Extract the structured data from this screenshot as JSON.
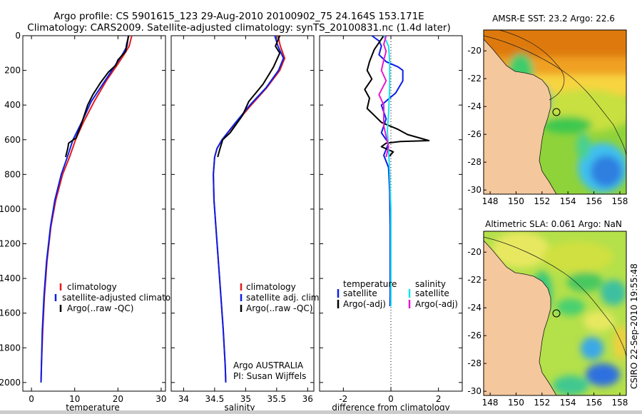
{
  "header": {
    "line1": "Argo profile: CS 5901615_123 29-Aug-2010 20100902_75 24.164S 153.171E",
    "line2": "Climatology: CARS2009. Satellite-adjusted climatology: synTS_20100831.nc (1.4d later)"
  },
  "credit": "CSIRO 22-Sep-2010 19:55:48",
  "colors": {
    "climatology": "#e41a1c",
    "satellite": "#0a1ee6",
    "argo": "#000000",
    "sal_satellite": "#19e1eb",
    "sal_argo": "#e619d2",
    "land": "#f4c79d",
    "bottom": "#cccccc"
  },
  "chart_data": [
    {
      "type": "line",
      "xlabel": "temperature",
      "ylabel": "",
      "xlim": [
        -2,
        31
      ],
      "ylim": [
        2050,
        0
      ],
      "xticks": [
        0,
        10,
        20,
        30
      ],
      "yticks": [
        0,
        200,
        400,
        600,
        800,
        1000,
        1200,
        1400,
        1600,
        1800,
        2000
      ],
      "legend": [
        "climatology",
        "satellite-adjusted climatology",
        "Argo(..raw -QC)"
      ],
      "series": [
        {
          "name": "climatology",
          "color": "#e41a1c",
          "points": [
            [
              23.2,
              0
            ],
            [
              22.6,
              60
            ],
            [
              21.4,
              110
            ],
            [
              19.8,
              170
            ],
            [
              17.3,
              260
            ],
            [
              14.5,
              380
            ],
            [
              12.0,
              500
            ],
            [
              10.2,
              600
            ],
            [
              8.8,
              700
            ],
            [
              7.2,
              800
            ],
            [
              5.6,
              950
            ],
            [
              4.5,
              1100
            ],
            [
              3.6,
              1300
            ],
            [
              3.0,
              1500
            ],
            [
              2.6,
              1700
            ],
            [
              2.3,
              1900
            ],
            [
              2.2,
              2000
            ]
          ]
        },
        {
          "name": "satellite-adjusted climatology",
          "color": "#0a1ee6",
          "points": [
            [
              22.4,
              0
            ],
            [
              22.1,
              60
            ],
            [
              21.0,
              110
            ],
            [
              19.4,
              170
            ],
            [
              17.0,
              260
            ],
            [
              13.8,
              380
            ],
            [
              11.6,
              500
            ],
            [
              9.6,
              600
            ],
            [
              8.3,
              700
            ],
            [
              6.9,
              800
            ],
            [
              5.4,
              950
            ],
            [
              4.4,
              1100
            ],
            [
              3.5,
              1300
            ],
            [
              2.9,
              1500
            ],
            [
              2.5,
              1700
            ],
            [
              2.3,
              1900
            ],
            [
              2.2,
              2000
            ]
          ]
        },
        {
          "name": "Argo(..raw -QC)",
          "color": "#000000",
          "points": [
            [
              22.5,
              0
            ],
            [
              22.0,
              50
            ],
            [
              21.8,
              90
            ],
            [
              20.0,
              140
            ],
            [
              19.5,
              170
            ],
            [
              17.8,
              210
            ],
            [
              16.0,
              270
            ],
            [
              14.2,
              340
            ],
            [
              13.0,
              400
            ],
            [
              12.2,
              460
            ],
            [
              11.4,
              520
            ],
            [
              10.3,
              590
            ],
            [
              8.6,
              620
            ],
            [
              8.4,
              650
            ],
            [
              7.9,
              700
            ]
          ]
        }
      ]
    },
    {
      "type": "line",
      "xlabel": "salinity",
      "ylabel": "",
      "xlim": [
        33.8,
        36.1
      ],
      "ylim": [
        2050,
        0
      ],
      "xticks": [
        34,
        34.5,
        35,
        35.5,
        36
      ],
      "yticks": [
        0,
        200,
        400,
        600,
        800,
        1000,
        1200,
        1400,
        1600,
        1800,
        2000
      ],
      "legend": [
        "climatology",
        "satellite adj. clim.",
        "Argo(..raw -QC)"
      ],
      "annotation": [
        "Argo AUSTRALIA",
        "PI: Susan Wijffels"
      ],
      "series": [
        {
          "name": "climatology",
          "color": "#e41a1c",
          "points": [
            [
              35.52,
              0
            ],
            [
              35.56,
              60
            ],
            [
              35.63,
              130
            ],
            [
              35.55,
              200
            ],
            [
              35.34,
              300
            ],
            [
              35.09,
              400
            ],
            [
              34.85,
              500
            ],
            [
              34.62,
              600
            ],
            [
              34.54,
              650
            ],
            [
              34.5,
              700
            ],
            [
              34.48,
              800
            ],
            [
              34.49,
              950
            ],
            [
              34.52,
              1100
            ],
            [
              34.56,
              1300
            ],
            [
              34.6,
              1500
            ],
            [
              34.64,
              1700
            ],
            [
              34.67,
              1900
            ],
            [
              34.68,
              2000
            ]
          ]
        },
        {
          "name": "satellite adj. clim.",
          "color": "#0a1ee6",
          "points": [
            [
              35.47,
              0
            ],
            [
              35.52,
              60
            ],
            [
              35.61,
              130
            ],
            [
              35.53,
              200
            ],
            [
              35.33,
              300
            ],
            [
              35.07,
              400
            ],
            [
              34.84,
              500
            ],
            [
              34.62,
              600
            ],
            [
              34.54,
              650
            ],
            [
              34.5,
              700
            ],
            [
              34.48,
              800
            ],
            [
              34.49,
              950
            ],
            [
              34.52,
              1100
            ],
            [
              34.56,
              1300
            ],
            [
              34.6,
              1500
            ],
            [
              34.64,
              1700
            ],
            [
              34.67,
              1900
            ],
            [
              34.68,
              2000
            ]
          ]
        },
        {
          "name": "Argo(..raw -QC)",
          "color": "#000000",
          "points": [
            [
              35.55,
              0
            ],
            [
              35.48,
              60
            ],
            [
              35.55,
              100
            ],
            [
              35.45,
              180
            ],
            [
              35.28,
              280
            ],
            [
              35.05,
              380
            ],
            [
              34.95,
              460
            ],
            [
              34.75,
              560
            ],
            [
              34.63,
              600
            ],
            [
              34.58,
              660
            ],
            [
              34.55,
              700
            ]
          ]
        }
      ]
    },
    {
      "type": "line",
      "xlabel": "difference from climatology",
      "ylabel": "",
      "xlim": [
        -3,
        3
      ],
      "ylim": [
        2050,
        0
      ],
      "xticks": [
        -2,
        0,
        2
      ],
      "yticks": [
        0,
        200,
        400,
        600,
        800,
        1000,
        1200,
        1400,
        1600,
        1800,
        2000
      ],
      "legend_temperature": {
        "heading": "temperature",
        "items": [
          "satellite",
          "Argo(-adj)"
        ]
      },
      "legend_salinity": {
        "heading": "salinity",
        "items": [
          "satellite",
          "Argo(-adj)"
        ]
      },
      "series": [
        {
          "name": "temperature satellite",
          "color": "#0a1ee6",
          "points": [
            [
              -0.8,
              0
            ],
            [
              -0.5,
              30
            ],
            [
              -0.4,
              60
            ],
            [
              -0.5,
              110
            ],
            [
              -0.2,
              150
            ],
            [
              0.3,
              180
            ],
            [
              0.5,
              200
            ],
            [
              0.5,
              260
            ],
            [
              0.2,
              330
            ],
            [
              -0.4,
              400
            ],
            [
              -0.2,
              480
            ],
            [
              -0.4,
              560
            ],
            [
              -0.1,
              620
            ],
            [
              -0.3,
              690
            ],
            [
              -0.1,
              760
            ],
            [
              -0.05,
              900
            ],
            [
              -0.03,
              1100
            ],
            [
              -0.03,
              1300
            ],
            [
              -0.03,
              1500
            ],
            [
              -0.04,
              1560
            ]
          ]
        },
        {
          "name": "temperature Argo(-adj)",
          "color": "#000000",
          "points": [
            [
              -0.3,
              0
            ],
            [
              -0.5,
              40
            ],
            [
              -0.7,
              80
            ],
            [
              -0.9,
              150
            ],
            [
              -1.0,
              200
            ],
            [
              -0.8,
              250
            ],
            [
              -1.1,
              310
            ],
            [
              -0.9,
              360
            ],
            [
              -1.0,
              420
            ],
            [
              -0.7,
              460
            ],
            [
              -0.4,
              500
            ],
            [
              0.3,
              540
            ],
            [
              0.7,
              570
            ],
            [
              1.6,
              605
            ],
            [
              0.4,
              610
            ],
            [
              -0.2,
              620
            ],
            [
              -0.4,
              640
            ],
            [
              0.1,
              670
            ],
            [
              -0.1,
              700
            ]
          ]
        },
        {
          "name": "salinity satellite",
          "color": "#19e1eb",
          "points": [
            [
              -0.3,
              0
            ],
            [
              -0.1,
              60
            ],
            [
              -0.05,
              150
            ],
            [
              -0.05,
              300
            ],
            [
              -0.1,
              450
            ],
            [
              -0.15,
              550
            ],
            [
              -0.1,
              650
            ],
            [
              -0.05,
              800
            ],
            [
              0.0,
              1000
            ],
            [
              0.0,
              1200
            ],
            [
              0.0,
              1400
            ],
            [
              0.0,
              1560
            ]
          ]
        },
        {
          "name": "salinity Argo(-adj)",
          "color": "#e619d2",
          "points": [
            [
              -0.2,
              0
            ],
            [
              -0.3,
              50
            ],
            [
              -0.2,
              90
            ],
            [
              -0.3,
              140
            ],
            [
              -0.4,
              200
            ],
            [
              -0.2,
              260
            ],
            [
              -0.5,
              340
            ],
            [
              -0.3,
              400
            ],
            [
              -0.3,
              460
            ],
            [
              -0.3,
              520
            ],
            [
              -0.2,
              580
            ],
            [
              -0.1,
              640
            ],
            [
              -0.2,
              700
            ]
          ]
        }
      ]
    },
    {
      "type": "heatmap",
      "title": "AMSR-E SST: 23.2  Argo: 22.6",
      "xlim": [
        147.5,
        158.5
      ],
      "ylim": [
        -30.3,
        -18.5
      ],
      "xticks": [
        148,
        150,
        152,
        154,
        156,
        158
      ],
      "yticks": [
        -20,
        -22,
        -24,
        -26,
        -28,
        -30
      ],
      "marker": {
        "lon": 153.171,
        "lat": -24.164
      }
    },
    {
      "type": "heatmap",
      "title": "Altimetric SLA: 0.061  Argo: NaN",
      "xlim": [
        147.5,
        158.5
      ],
      "ylim": [
        -30.3,
        -18.5
      ],
      "xticks": [
        148,
        150,
        152,
        154,
        156,
        158
      ],
      "yticks": [
        -20,
        -22,
        -24,
        -26,
        -28,
        -30
      ],
      "marker": {
        "lon": 153.171,
        "lat": -24.164
      }
    }
  ]
}
